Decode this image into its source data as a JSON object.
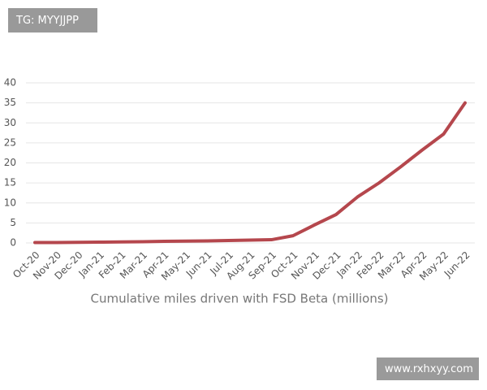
{
  "watermark_top": "TG: MYYJJPP",
  "watermark_bottom": "www.rxhxyy.com",
  "chart_data": {
    "type": "line",
    "title": "Cumulative miles driven with FSD Beta (millions)",
    "categories": [
      "Oct-20",
      "Nov-20",
      "Dec-20",
      "Jan-21",
      "Feb-21",
      "Mar-21",
      "Apr-21",
      "May-21",
      "Jun-21",
      "Jul-21",
      "Aug-21",
      "Sep-21",
      "Oct-21",
      "Nov-21",
      "Dec-21",
      "Jan-22",
      "Feb-22",
      "Mar-22",
      "Apr-22",
      "May-22",
      "Jun-22"
    ],
    "series": [
      {
        "name": "Cumulative miles",
        "color": "#b5474d",
        "values": [
          0.1,
          0.1,
          0.15,
          0.2,
          0.25,
          0.3,
          0.4,
          0.45,
          0.5,
          0.6,
          0.7,
          0.8,
          1.8,
          4.5,
          7.1,
          11.5,
          15,
          19,
          23.2,
          27.2,
          35
        ]
      }
    ],
    "ylim": [
      0,
      40
    ],
    "yticks": [
      0,
      5,
      10,
      15,
      20,
      25,
      30,
      35,
      40
    ],
    "grid": true
  }
}
